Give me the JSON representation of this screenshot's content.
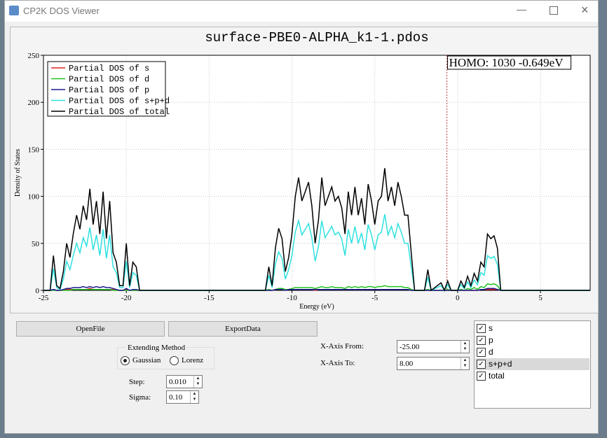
{
  "window": {
    "title": "CP2K DOS Viewer"
  },
  "chart_data": {
    "type": "line",
    "title": "surface-PBE0-ALPHA_k1-1.pdos",
    "xlabel": "Energy (eV)",
    "ylabel": "Density of States",
    "xlim": [
      -25,
      8
    ],
    "ylim": [
      0,
      250
    ],
    "xticks": [
      -25,
      -20,
      -15,
      -10,
      -5,
      0,
      5
    ],
    "yticks": [
      0,
      50,
      100,
      150,
      200,
      250
    ],
    "grid": true,
    "legend": "upper-left",
    "homo": {
      "value": -0.649,
      "label": "HOMO: 1030 -0.649eV",
      "color": "#c04040"
    },
    "x": [
      -25,
      -24.6,
      -24.4,
      -24.2,
      -24.0,
      -23.8,
      -23.6,
      -23.4,
      -23.2,
      -23.0,
      -22.8,
      -22.6,
      -22.4,
      -22.2,
      -22.0,
      -21.8,
      -21.6,
      -21.4,
      -21.2,
      -21.0,
      -20.8,
      -20.6,
      -20.4,
      -20.2,
      -20.0,
      -19.8,
      -19.6,
      -19.4,
      -19.2,
      -11.6,
      -11.4,
      -11.2,
      -11.0,
      -10.8,
      -10.6,
      -10.4,
      -10.2,
      -10.0,
      -9.8,
      -9.6,
      -9.4,
      -9.2,
      -9.0,
      -8.8,
      -8.6,
      -8.4,
      -8.2,
      -8.0,
      -7.8,
      -7.6,
      -7.4,
      -7.2,
      -7.0,
      -6.8,
      -6.6,
      -6.4,
      -6.2,
      -6.0,
      -5.8,
      -5.6,
      -5.4,
      -5.2,
      -5.0,
      -4.8,
      -4.6,
      -4.4,
      -4.2,
      -4.0,
      -3.8,
      -3.6,
      -3.4,
      -3.2,
      -3.0,
      -2.8,
      -2.6,
      -2.0,
      -1.8,
      -1.6,
      -1.0,
      -0.8,
      -0.6,
      -0.4,
      0.0,
      0.2,
      0.4,
      0.6,
      0.8,
      1.0,
      1.2,
      1.4,
      1.6,
      1.8,
      2.0,
      2.2,
      2.4,
      2.6,
      8.0
    ],
    "series": [
      {
        "name": "Partial DOS of s",
        "color": "#e02020",
        "values": [
          0,
          0,
          1,
          0,
          0,
          1,
          1,
          1,
          1,
          1,
          1,
          1,
          1,
          2,
          1,
          1,
          1,
          1,
          1,
          1,
          1,
          0,
          0,
          0,
          1,
          0,
          0,
          0,
          0,
          0,
          0,
          0,
          1,
          1,
          1,
          0,
          1,
          1,
          1,
          1,
          1,
          1,
          1,
          1,
          0,
          1,
          1,
          1,
          1,
          1,
          1,
          1,
          1,
          1,
          1,
          1,
          1,
          1,
          1,
          1,
          1,
          1,
          1,
          1,
          1,
          1,
          1,
          1,
          1,
          1,
          1,
          1,
          1,
          0,
          0,
          0,
          0,
          0,
          0,
          0,
          0,
          0,
          0,
          0,
          0,
          0,
          0,
          0,
          0,
          1,
          1,
          1,
          1,
          1,
          1,
          0,
          0
        ]
      },
      {
        "name": "Partial DOS of d",
        "color": "#20c020",
        "values": [
          0,
          0,
          0,
          0,
          0,
          0,
          0,
          0,
          1,
          1,
          1,
          1,
          1,
          1,
          1,
          1,
          1,
          1,
          1,
          1,
          0,
          0,
          0,
          0,
          0,
          0,
          0,
          0,
          0,
          0,
          1,
          0,
          1,
          2,
          2,
          1,
          1,
          2,
          3,
          3,
          3,
          3,
          3,
          3,
          2,
          3,
          4,
          3,
          3,
          4,
          3,
          3,
          3,
          2,
          4,
          3,
          4,
          3,
          4,
          3,
          4,
          4,
          3,
          4,
          4,
          5,
          4,
          4,
          4,
          4,
          4,
          3,
          3,
          1,
          0,
          0,
          1,
          0,
          0,
          0,
          1,
          0,
          0,
          1,
          0,
          2,
          1,
          3,
          1,
          4,
          3,
          7,
          6,
          7,
          5,
          0,
          0
        ]
      },
      {
        "name": "Partial DOS of p",
        "color": "#1a1a90",
        "values": [
          0,
          0,
          1,
          0,
          0,
          1,
          2,
          2,
          3,
          3,
          3,
          4,
          3,
          4,
          3,
          4,
          3,
          4,
          3,
          3,
          2,
          1,
          0,
          0,
          2,
          0,
          1,
          1,
          0,
          0,
          0,
          0,
          1,
          1,
          1,
          0,
          1,
          1,
          1,
          1,
          1,
          1,
          1,
          1,
          1,
          1,
          1,
          1,
          1,
          1,
          1,
          1,
          1,
          1,
          1,
          1,
          1,
          1,
          1,
          1,
          1,
          1,
          1,
          1,
          1,
          1,
          1,
          1,
          1,
          1,
          1,
          1,
          1,
          0,
          0,
          0,
          0,
          0,
          0,
          0,
          0,
          0,
          0,
          0,
          0,
          0,
          0,
          0,
          0,
          1,
          1,
          2,
          2,
          2,
          1,
          0,
          0
        ]
      },
      {
        "name": "Partial DOS of s+p+d",
        "color": "#30e0e0",
        "values": [
          0,
          0,
          23,
          3,
          1,
          12,
          31,
          22,
          37,
          50,
          40,
          56,
          47,
          67,
          43,
          59,
          37,
          65,
          34,
          59,
          25,
          19,
          3,
          3,
          31,
          3,
          19,
          16,
          0,
          0,
          16,
          3,
          28,
          41,
          34,
          12,
          22,
          37,
          62,
          74,
          59,
          65,
          71,
          56,
          31,
          47,
          74,
          56,
          62,
          68,
          59,
          62,
          55,
          37,
          65,
          50,
          68,
          50,
          61,
          43,
          70,
          59,
          43,
          59,
          62,
          81,
          59,
          68,
          56,
          71,
          62,
          50,
          50,
          25,
          0,
          0,
          14,
          0,
          5,
          0,
          6,
          0,
          0,
          6,
          2,
          9,
          3,
          11,
          6,
          19,
          16,
          37,
          34,
          36,
          28,
          0,
          0
        ]
      },
      {
        "name": "Partial DOS of total",
        "color": "#000000",
        "values": [
          0,
          0,
          37,
          5,
          2,
          20,
          50,
          35,
          60,
          80,
          65,
          90,
          75,
          108,
          70,
          95,
          60,
          105,
          55,
          95,
          40,
          30,
          5,
          5,
          50,
          5,
          30,
          25,
          0,
          0,
          25,
          5,
          45,
          66,
          55,
          20,
          35,
          60,
          100,
          120,
          95,
          105,
          115,
          90,
          50,
          75,
          120,
          90,
          100,
          110,
          95,
          100,
          88,
          60,
          105,
          80,
          110,
          80,
          98,
          70,
          113,
          95,
          70,
          95,
          100,
          130,
          95,
          110,
          90,
          115,
          100,
          80,
          80,
          40,
          0,
          0,
          22,
          0,
          8,
          0,
          10,
          0,
          0,
          10,
          3,
          15,
          5,
          18,
          10,
          30,
          25,
          60,
          55,
          58,
          45,
          0,
          0
        ]
      }
    ]
  },
  "buttons": [
    "OpenFile",
    "ExportData"
  ],
  "method": {
    "title": "Extending Method",
    "options": [
      "Gaussian",
      "Lorenz"
    ],
    "selected": 0
  },
  "step": {
    "label": "Step:",
    "value": "0.010"
  },
  "sigma": {
    "label": "Sigma:",
    "value": "0.10"
  },
  "xfrom": {
    "label": "X-Axis From:",
    "value": "-25.00"
  },
  "xto": {
    "label": "X-Axis To:",
    "value": "8.00"
  },
  "list": {
    "items": [
      "s",
      "p",
      "d",
      "s+p+d",
      "total"
    ],
    "selected": 3
  }
}
